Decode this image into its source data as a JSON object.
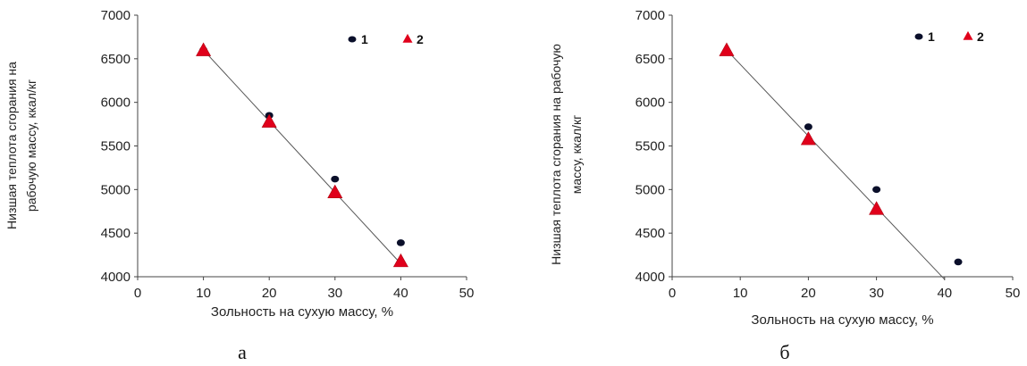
{
  "chart_data": [
    {
      "type": "scatter",
      "panel_label": "а",
      "xlabel": "Зольность на сухую массу, %",
      "ylabel_lines": [
        "Низшая теплота сгорания на",
        "рабочую массу, ккал/кг"
      ],
      "xlim": [
        0,
        50
      ],
      "ylim": [
        4000,
        7000
      ],
      "x_ticks": [
        0,
        10,
        20,
        30,
        40,
        50
      ],
      "y_ticks": [
        4000,
        4500,
        5000,
        5500,
        6000,
        6500,
        7000
      ],
      "grid": false,
      "legend": {
        "position": "top-right"
      },
      "series": [
        {
          "name": "1",
          "marker": "circle",
          "color": "#0a0f2a",
          "x": [
            10,
            20,
            30,
            40
          ],
          "y": [
            6600,
            5850,
            5120,
            4390
          ]
        },
        {
          "name": "2",
          "marker": "triangle",
          "color": "#e0001b",
          "x": [
            10,
            20,
            30,
            40
          ],
          "y": [
            6590,
            5770,
            4960,
            4170
          ]
        }
      ],
      "trendline": {
        "x": [
          10,
          40
        ],
        "y": [
          6600,
          4150
        ],
        "color": "#555555"
      }
    },
    {
      "type": "scatter",
      "panel_label": "б",
      "xlabel": "Зольность на сухую массу, %",
      "ylabel_lines": [
        "Низшая теплота сгорания на рабочую",
        "массу, ккал/кг"
      ],
      "xlim": [
        0,
        50
      ],
      "ylim": [
        4000,
        7000
      ],
      "x_ticks": [
        0,
        10,
        20,
        30,
        40,
        50
      ],
      "y_ticks": [
        4000,
        4500,
        5000,
        5500,
        6000,
        6500,
        7000
      ],
      "grid": false,
      "legend": {
        "position": "top-right"
      },
      "series": [
        {
          "name": "1",
          "marker": "circle",
          "color": "#0a0f2a",
          "x": [
            8,
            20,
            30,
            42
          ],
          "y": [
            6590,
            5720,
            5000,
            4170
          ]
        },
        {
          "name": "2",
          "marker": "triangle",
          "color": "#e0001b",
          "x": [
            8,
            20,
            30
          ],
          "y": [
            6590,
            5570,
            4770
          ]
        }
      ],
      "trendline": {
        "x": [
          8,
          40
        ],
        "y": [
          6600,
          3970
        ],
        "color": "#555555"
      }
    }
  ]
}
